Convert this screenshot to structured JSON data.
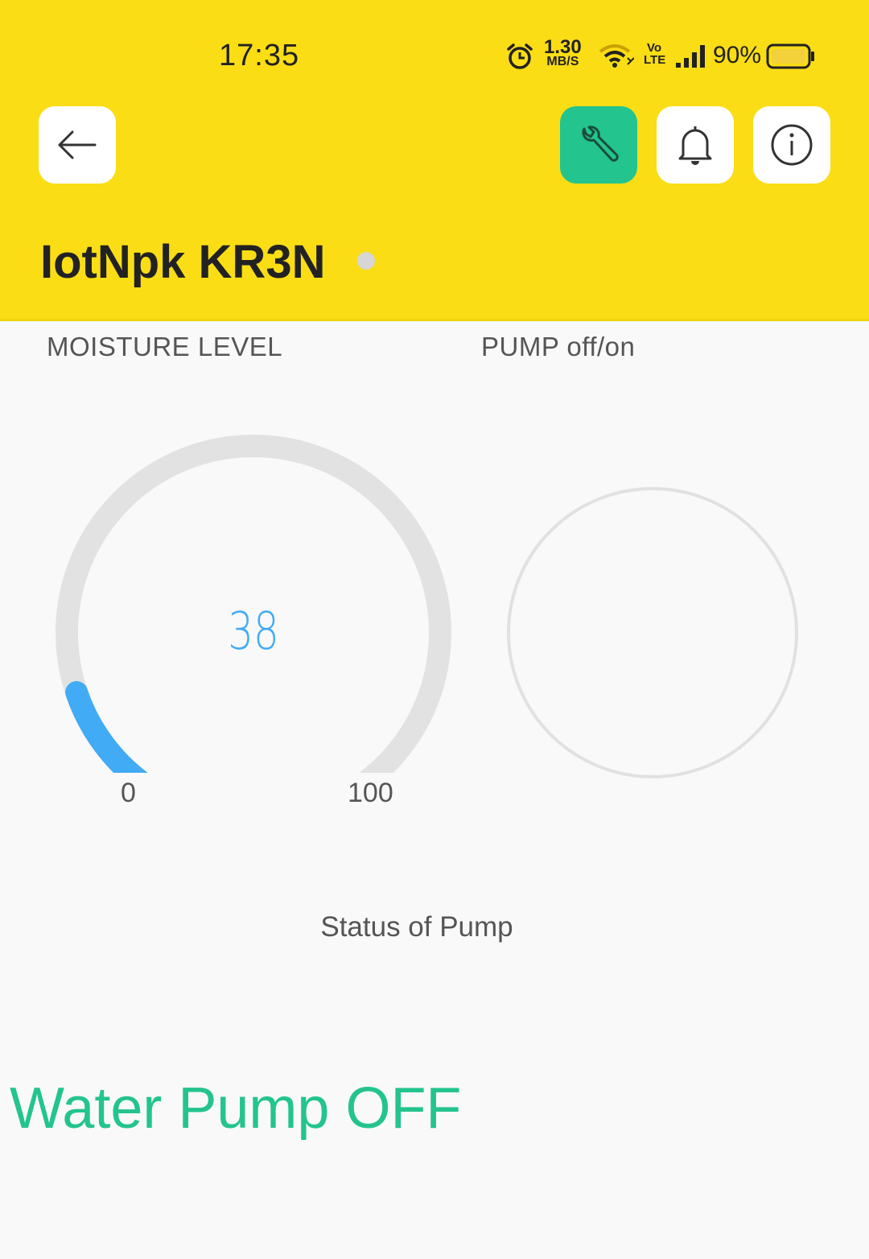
{
  "status_bar": {
    "time": "17:35",
    "net_speed_value": "1.30",
    "net_speed_unit": "MB/S",
    "network_type": "Vo LTE",
    "battery": "90%"
  },
  "header": {
    "device_name": "IotNpk KR3N",
    "accent_color": "#fadd15",
    "buttons": [
      "back",
      "settings",
      "notifications",
      "info"
    ]
  },
  "moisture_widget": {
    "label": "MOISTURE LEVEL",
    "value": "38",
    "min": "0",
    "max": "100",
    "fill_fraction": 0.38,
    "color": "#41abf5"
  },
  "pump_widget": {
    "label": "PUMP off/on"
  },
  "pump_status": {
    "label": "Status of Pump",
    "value": "Water Pump OFF",
    "color": "#23c48e"
  }
}
